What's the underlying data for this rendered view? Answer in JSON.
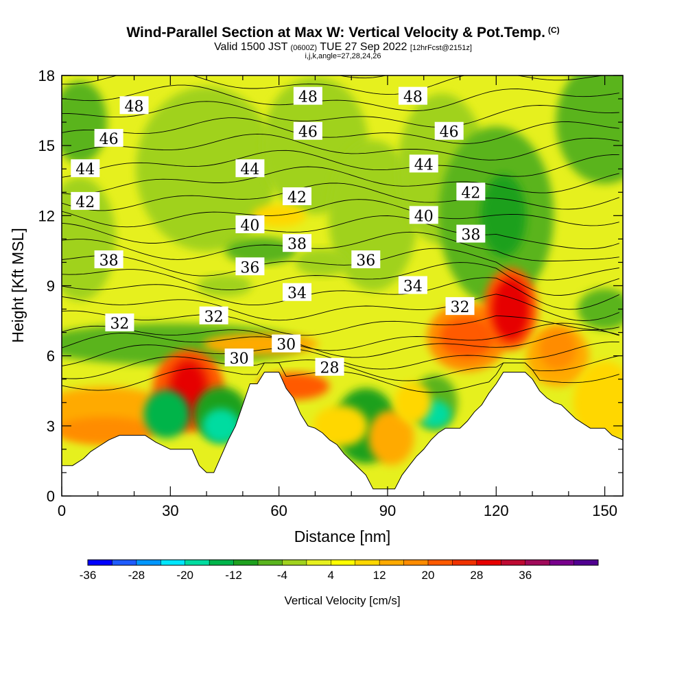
{
  "header": {
    "title": "Wind-Parallel Section at Max W: Vertical Velocity & Pot.Temp.",
    "title_mark": "(C)",
    "valid_prefix": "Valid 1500 JST",
    "valid_utc": "(0600Z)",
    "valid_date": "TUE 27 Sep 2022",
    "forecast": "[12hrFcst@2151z]",
    "indices": "i,j,k,angle=27,28,24,26"
  },
  "chart_data": {
    "type": "heatmap",
    "xlabel": "Distance [nm]",
    "ylabel": "Height [Kft MSL]",
    "xlim": [
      0,
      155
    ],
    "ylim": [
      0,
      18
    ],
    "xticks": [
      "0",
      "30",
      "60",
      "90",
      "120",
      "150"
    ],
    "yticks": [
      "0",
      "3",
      "6",
      "9",
      "12",
      "15",
      "18"
    ],
    "colorbar": {
      "title": "Vertical Velocity [cm/s]",
      "labels": [
        "-36",
        "-28",
        "-20",
        "-12",
        "-4",
        "4",
        "12",
        "20",
        "28",
        "36"
      ],
      "colors": [
        "#0000ff",
        "#1e5bff",
        "#0096ff",
        "#00e6ff",
        "#00dca0",
        "#00b44a",
        "#1ea01e",
        "#5ab41e",
        "#a0d21e",
        "#e6f01e",
        "#ffff00",
        "#ffd700",
        "#ffaa00",
        "#ff8c00",
        "#ff5a00",
        "#f03200",
        "#e60000",
        "#be0a32",
        "#a00a5a",
        "#78008c",
        "#500090"
      ]
    },
    "theta_labels": [
      {
        "text": "48",
        "x": 20,
        "y": 16.7
      },
      {
        "text": "48",
        "x": 68,
        "y": 17.1
      },
      {
        "text": "48",
        "x": 97,
        "y": 17.1
      },
      {
        "text": "46",
        "x": 13,
        "y": 15.3
      },
      {
        "text": "46",
        "x": 68,
        "y": 15.6
      },
      {
        "text": "46",
        "x": 107,
        "y": 15.6
      },
      {
        "text": "44",
        "x": 6.5,
        "y": 14.0
      },
      {
        "text": "44",
        "x": 52,
        "y": 14.0
      },
      {
        "text": "44",
        "x": 100,
        "y": 14.2
      },
      {
        "text": "42",
        "x": 6.5,
        "y": 12.6
      },
      {
        "text": "42",
        "x": 65,
        "y": 12.8
      },
      {
        "text": "42",
        "x": 113,
        "y": 13.0
      },
      {
        "text": "40",
        "x": 52,
        "y": 11.6
      },
      {
        "text": "40",
        "x": 100,
        "y": 12.0
      },
      {
        "text": "38",
        "x": 13,
        "y": 10.1
      },
      {
        "text": "38",
        "x": 65,
        "y": 10.8
      },
      {
        "text": "38",
        "x": 113,
        "y": 11.2
      },
      {
        "text": "36",
        "x": 52,
        "y": 9.8
      },
      {
        "text": "36",
        "x": 84,
        "y": 10.1
      },
      {
        "text": "34",
        "x": 65,
        "y": 8.7
      },
      {
        "text": "34",
        "x": 97,
        "y": 9.0
      },
      {
        "text": "32",
        "x": 16,
        "y": 7.4
      },
      {
        "text": "32",
        "x": 42,
        "y": 7.7
      },
      {
        "text": "32",
        "x": 110,
        "y": 8.1
      },
      {
        "text": "30",
        "x": 49,
        "y": 5.9
      },
      {
        "text": "30",
        "x": 62,
        "y": 6.5
      },
      {
        "text": "28",
        "x": 74,
        "y": 5.5
      }
    ],
    "terrain_x": [
      0,
      3,
      6,
      8,
      10,
      13,
      16,
      18,
      21,
      23,
      26,
      30,
      33,
      36,
      38,
      40,
      42,
      44,
      46,
      48,
      50,
      52,
      54,
      56,
      60,
      62,
      64,
      66,
      68,
      70,
      72,
      74,
      76,
      78,
      80,
      82,
      84,
      86,
      88,
      90,
      92,
      94,
      96,
      98,
      100,
      102,
      104,
      106,
      108,
      110,
      112,
      114,
      116,
      118,
      120,
      122,
      124,
      126,
      128,
      130,
      132,
      134,
      136,
      138,
      140,
      142,
      144,
      146,
      148,
      150,
      152,
      155
    ],
    "terrain_y": [
      1.3,
      1.3,
      1.6,
      1.9,
      2.1,
      2.4,
      2.6,
      2.6,
      2.6,
      2.6,
      2.3,
      2.0,
      2.0,
      2.0,
      1.3,
      1.0,
      1.0,
      1.7,
      2.4,
      3.0,
      3.9,
      4.8,
      4.8,
      5.3,
      5.3,
      4.6,
      4.2,
      3.5,
      3.0,
      2.9,
      2.7,
      2.4,
      2.2,
      1.8,
      1.5,
      1.2,
      0.9,
      0.3,
      0.3,
      0.3,
      0.3,
      0.9,
      1.3,
      1.7,
      2.0,
      2.4,
      2.7,
      2.9,
      2.9,
      2.9,
      3.2,
      3.6,
      3.9,
      4.4,
      4.8,
      5.3,
      5.3,
      5.3,
      5.3,
      5.0,
      4.5,
      4.2,
      4.0,
      3.9,
      3.6,
      3.3,
      3.1,
      2.9,
      2.9,
      2.9,
      2.6,
      2.4
    ],
    "theta_levels": [
      28,
      29,
      30,
      31,
      32,
      33,
      34,
      35,
      36,
      37,
      38,
      39,
      40,
      41,
      42,
      43,
      44,
      45,
      46,
      47,
      48,
      49
    ]
  }
}
